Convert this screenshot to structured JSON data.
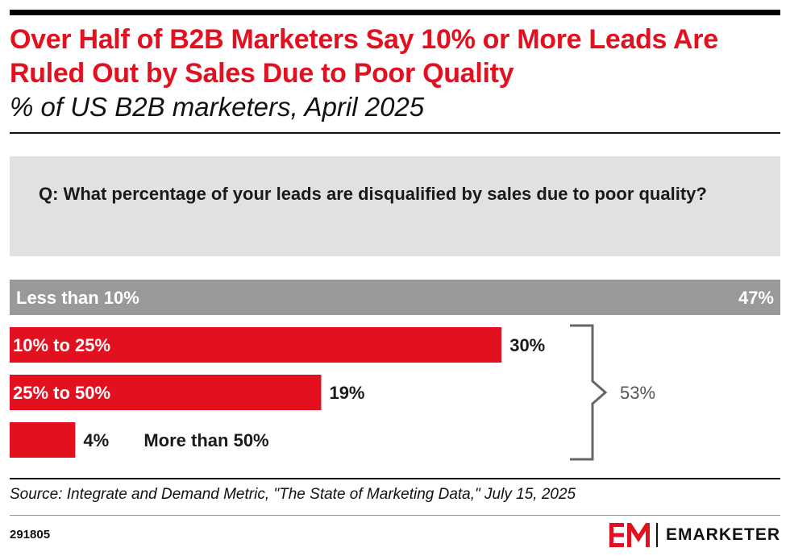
{
  "title": "Over Half of B2B Marketers Say 10% or More Leads Are Ruled Out by Sales Due to Poor Quality",
  "subtitle": "% of US B2B marketers, April 2025",
  "question": "Q: What percentage of your leads are disqualified by sales due to poor quality?",
  "source": "Source: Integrate and Demand Metric, \"The State of Marketing Data,\" July 15, 2025",
  "chart_id": "291805",
  "brand": "EMARKETER",
  "colors": {
    "accent": "#e3101f",
    "gray_bar": "#999999",
    "bracket": "#666666"
  },
  "chart_data": {
    "type": "bar",
    "orientation": "horizontal",
    "categories": [
      "Less than 10%",
      "10% to 25%",
      "25% to 50%",
      "More than 50%"
    ],
    "values": [
      47,
      30,
      19,
      4
    ],
    "value_labels": [
      "47%",
      "30%",
      "19%",
      "4%"
    ],
    "bar_colors": [
      "#999999",
      "#e3101f",
      "#e3101f",
      "#e3101f"
    ],
    "xlim": [
      0,
      47
    ],
    "annotation": {
      "bracket_categories": [
        "10% to 25%",
        "25% to 50%",
        "More than 50%"
      ],
      "label": "53%"
    }
  }
}
